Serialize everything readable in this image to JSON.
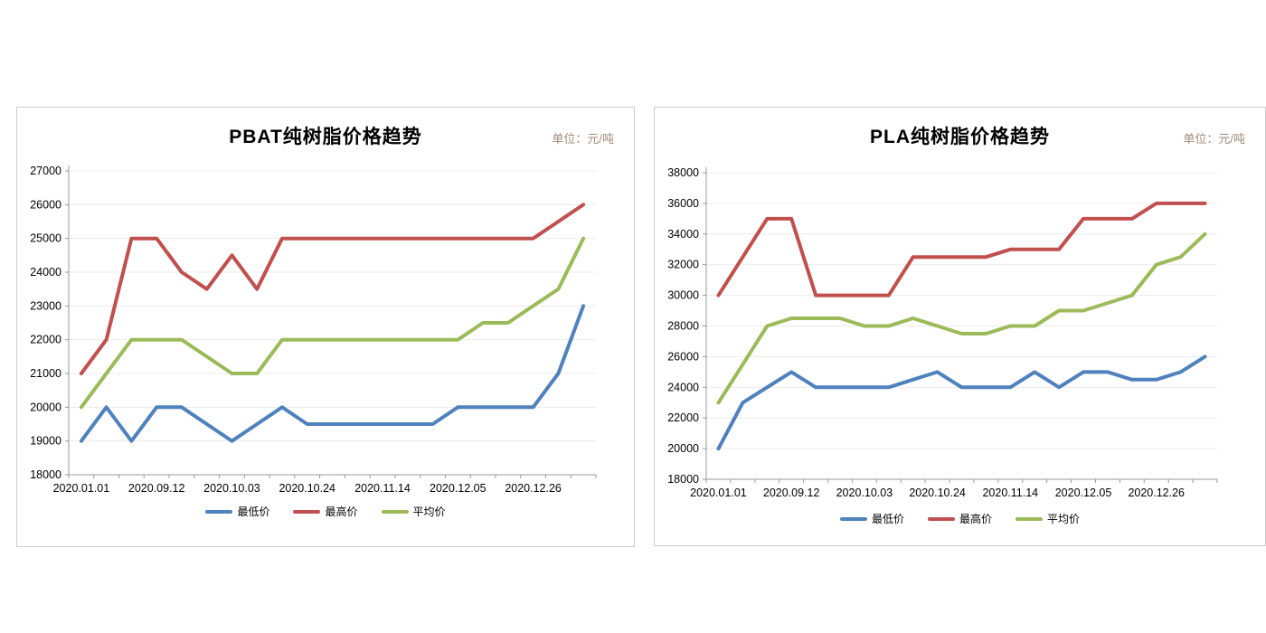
{
  "chart_data": [
    {
      "type": "line",
      "title": "PBAT纯树脂价格趋势",
      "unit_label": "单位：元/吨",
      "ylim": [
        18000,
        27000
      ],
      "y_step": 1000,
      "x_tick_labels": [
        "2020.01.01",
        "2020.09.12",
        "2020.10.03",
        "2020.10.24",
        "2020.11.14",
        "2020.12.05",
        "2020.12.26"
      ],
      "label_every_n_points": 3,
      "grid": "horizontal",
      "legend_position": "bottom",
      "series": [
        {
          "name": "最低价",
          "color": "#4f81bd",
          "values": [
            19000,
            20000,
            19000,
            20000,
            20000,
            19500,
            19000,
            19500,
            20000,
            19500,
            19500,
            19500,
            19500,
            19500,
            19500,
            20000,
            20000,
            20000,
            20000,
            21000,
            23000
          ]
        },
        {
          "name": "最高价",
          "color": "#c0504d",
          "values": [
            21000,
            22000,
            25000,
            25000,
            24000,
            23500,
            24500,
            23500,
            25000,
            25000,
            25000,
            25000,
            25000,
            25000,
            25000,
            25000,
            25000,
            25000,
            25000,
            25500,
            26000
          ]
        },
        {
          "name": "平均价",
          "color": "#9bbb59",
          "values": [
            20000,
            21000,
            22000,
            22000,
            22000,
            21500,
            21000,
            21000,
            22000,
            22000,
            22000,
            22000,
            22000,
            22000,
            22000,
            22000,
            22500,
            22500,
            23000,
            23500,
            25000
          ]
        }
      ]
    },
    {
      "type": "line",
      "title": "PLA纯树脂价格趋势",
      "unit_label": "单位：元/吨",
      "ylim": [
        18000,
        38000
      ],
      "y_step": 2000,
      "x_tick_labels": [
        "2020.01.01",
        "2020.09.12",
        "2020.10.03",
        "2020.10.24",
        "2020.11.14",
        "2020.12.05",
        "2020.12.26"
      ],
      "label_every_n_points": 3,
      "grid": "horizontal",
      "legend_position": "bottom",
      "series": [
        {
          "name": "最低价",
          "color": "#4f81bd",
          "values": [
            20000,
            23000,
            24000,
            25000,
            24000,
            24000,
            24000,
            24000,
            24500,
            25000,
            24000,
            24000,
            24000,
            25000,
            24000,
            25000,
            25000,
            24500,
            24500,
            25000,
            26000
          ]
        },
        {
          "name": "最高价",
          "color": "#c0504d",
          "values": [
            30000,
            32500,
            35000,
            35000,
            30000,
            30000,
            30000,
            30000,
            32500,
            32500,
            32500,
            32500,
            33000,
            33000,
            33000,
            35000,
            35000,
            35000,
            36000,
            36000,
            36000
          ]
        },
        {
          "name": "平均价",
          "color": "#9bbb59",
          "values": [
            23000,
            25500,
            28000,
            28500,
            28500,
            28500,
            28000,
            28000,
            28500,
            28000,
            27500,
            27500,
            28000,
            28000,
            29000,
            29000,
            29500,
            30000,
            32000,
            32500,
            34000
          ]
        }
      ]
    }
  ]
}
